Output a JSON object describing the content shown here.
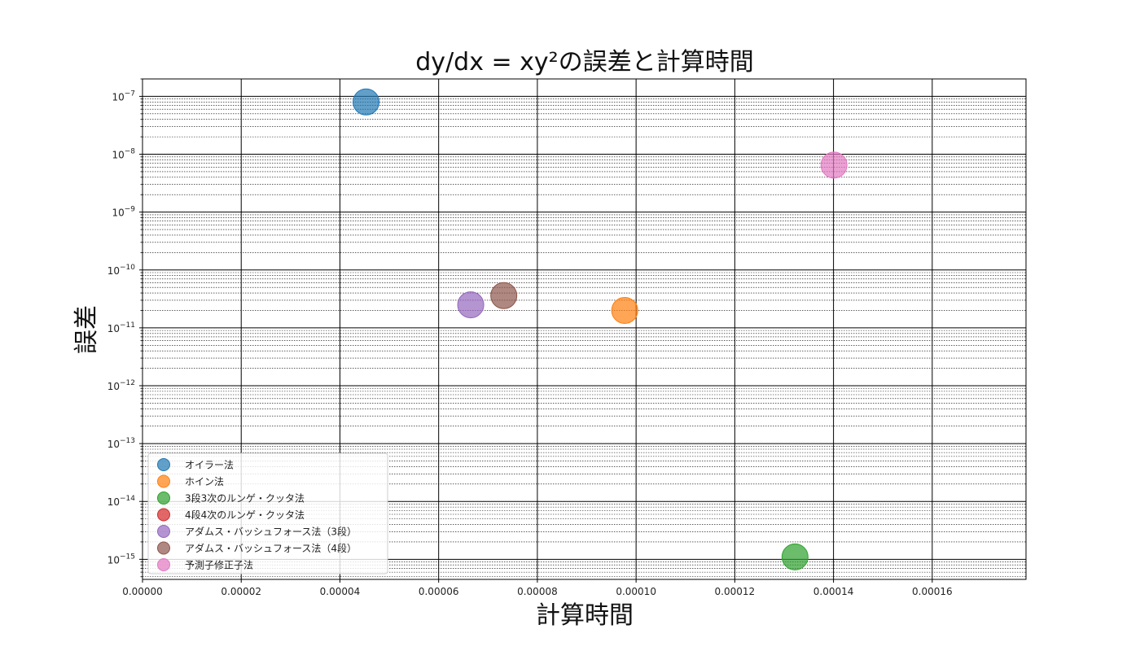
{
  "chart_data": {
    "type": "scatter",
    "title": "dy/dx = xy²の誤差と計算時間",
    "xlabel": "計算時間",
    "ylabel": "誤差",
    "xlim": [
      0,
      0.000179
    ],
    "ylim": [
      4.5e-16,
      2e-07
    ],
    "yscale": "log",
    "grid": true,
    "legend_position": "lower-left",
    "x_ticks": [
      "0.00000",
      "0.00002",
      "0.00004",
      "0.00006",
      "0.00008",
      "0.00010",
      "0.00012",
      "0.00014",
      "0.00016"
    ],
    "y_ticks": [
      "10^-7",
      "10^-8",
      "10^-9",
      "10^-10",
      "10^-11",
      "10^-12",
      "10^-13",
      "10^-14",
      "10^-15"
    ],
    "series": [
      {
        "name": "オイラー法",
        "color": "#1f77b4",
        "x": 4.53e-05,
        "y": 8e-08
      },
      {
        "name": "ホイン法",
        "color": "#ff7f0e",
        "x": 9.77e-05,
        "y": 2e-11
      },
      {
        "name": "3段3次のルンゲ・クッタ法",
        "color": "#2ca02c",
        "x": 0.0001322,
        "y": 1.1e-15
      },
      {
        "name": "4段4次のルンゲ・クッタ法",
        "color": "#d62728",
        "x": null,
        "y": null
      },
      {
        "name": "アダムス・バッシュフォース法（3段）",
        "color": "#9467bd",
        "x": 6.65e-05,
        "y": 2.5e-11
      },
      {
        "name": "アダムス・バッシュフォース法（4段）",
        "color": "#8c564b",
        "x": 7.32e-05,
        "y": 3.6e-11
      },
      {
        "name": "予測子修正子法",
        "color": "#e377c2",
        "x": 0.0001401,
        "y": 6.5e-09
      }
    ]
  }
}
